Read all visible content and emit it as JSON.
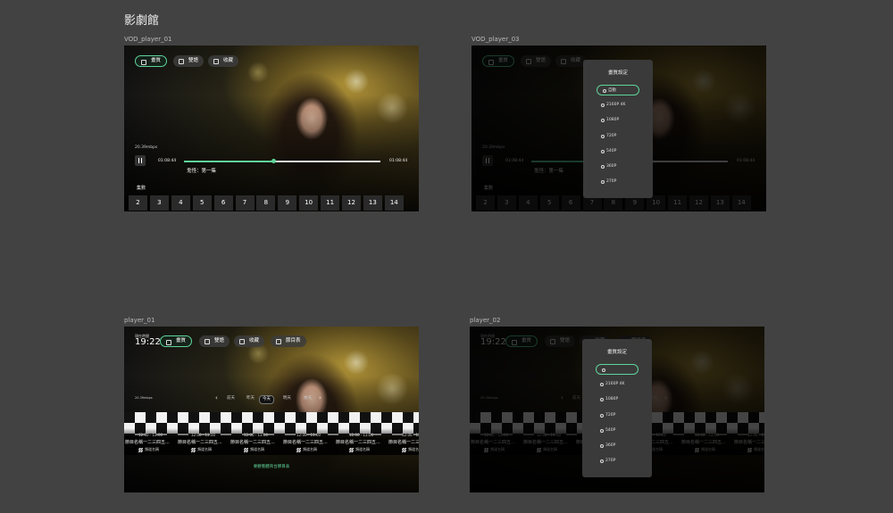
{
  "header": {
    "title": "影劇館"
  },
  "frames": [
    {
      "label": "VOD_player_01",
      "buttons": [
        "畫質",
        "雙語",
        "收藏"
      ],
      "bitrate": "20.39mbps",
      "time_current": "01:08:44",
      "time_total": "01:08:44",
      "episode_title": "鬼怪：第一集",
      "episodes_label": "集數",
      "episodes": [
        "2",
        "3",
        "4",
        "5",
        "6",
        "7",
        "8",
        "9",
        "10",
        "11",
        "12",
        "13",
        "14"
      ]
    },
    {
      "label": "VOD_player_03",
      "buttons": [
        "畫質",
        "雙語",
        "收藏"
      ],
      "bitrate": "20.39mbps",
      "time_current": "01:08:44",
      "time_total": "01:08:44",
      "episode_title": "鬼怪：第一集",
      "episodes_label": "集數",
      "episodes": [
        "2",
        "3",
        "4",
        "5",
        "6",
        "7",
        "8",
        "9",
        "10",
        "11",
        "12",
        "13",
        "14"
      ],
      "dialog": {
        "title": "畫質設定",
        "options": [
          "自動",
          "2160P  4K",
          "1080P",
          "720P",
          "540P",
          "360P",
          "270P"
        ]
      }
    },
    {
      "label": "player_01",
      "clock_label": "現在時間",
      "clock": "19:22",
      "buttons": [
        "畫質",
        "雙語",
        "收藏",
        "節目表"
      ],
      "bitrate": "20.39mbps",
      "days": [
        "前天",
        "昨天",
        "今天",
        "明天",
        "後天"
      ],
      "programs": [
        {
          "time": "12:00 - 13:00",
          "name": "節目名稱一二三四五...",
          "channel": "頻道名稱"
        },
        {
          "time": "12:00 - 13:00",
          "name": "節目名稱一二三四五...",
          "channel": "頻道名稱"
        },
        {
          "time": "12:00 - 13:00",
          "name": "節目名稱一二三四五...",
          "channel": "頻道名稱"
        },
        {
          "time": "12:00 - 13:00",
          "name": "節目名稱一二三四五...",
          "channel": "頻道名稱"
        },
        {
          "time": "12:00 - 13:00",
          "name": "節目名稱一二三四五...",
          "channel": "頻道名稱"
        },
        {
          "time": "12:00 - 13:00",
          "name": "節目名稱一二三四五...",
          "channel": "頻道名稱"
        }
      ],
      "footer_link": "要觀看體育台節目表"
    },
    {
      "label": "player_02",
      "clock_label": "現在時間",
      "clock": "19:22",
      "buttons": [
        "畫質",
        "雙語",
        "收藏",
        "節目表"
      ],
      "bitrate": "20.39mbps",
      "days": [
        "前天",
        "昨天",
        "今天",
        "明天",
        "後天"
      ],
      "programs": [
        {
          "time": "12:00 - 13:00",
          "name": "節目名稱一二三四五...",
          "channel": "頻道名稱"
        },
        {
          "time": "12:00 - 13:00",
          "name": "節目名稱一二三四五...",
          "channel": "頻道名稱"
        },
        {
          "time": "12:00 - 13:00",
          "name": "節目名稱一二三四五...",
          "channel": "頻道名稱"
        },
        {
          "time": "12:00 - 13:00",
          "name": "節目名稱一二三四五...",
          "channel": "頻道名稱"
        },
        {
          "time": "12:00 - 13:00",
          "name": "節目名稱一二三四五...",
          "channel": "頻道名稱"
        },
        {
          "time": "12:00 - 13:00",
          "name": "節目名稱一二三四五...",
          "channel": "頻道名稱"
        }
      ],
      "footer_link": "要觀看體育台節目表",
      "dialog": {
        "title": "畫質設定",
        "options": [
          "2160P  4K",
          "1080P",
          "720P",
          "540P",
          "360P",
          "270P"
        ],
        "blank_first": true
      }
    }
  ]
}
